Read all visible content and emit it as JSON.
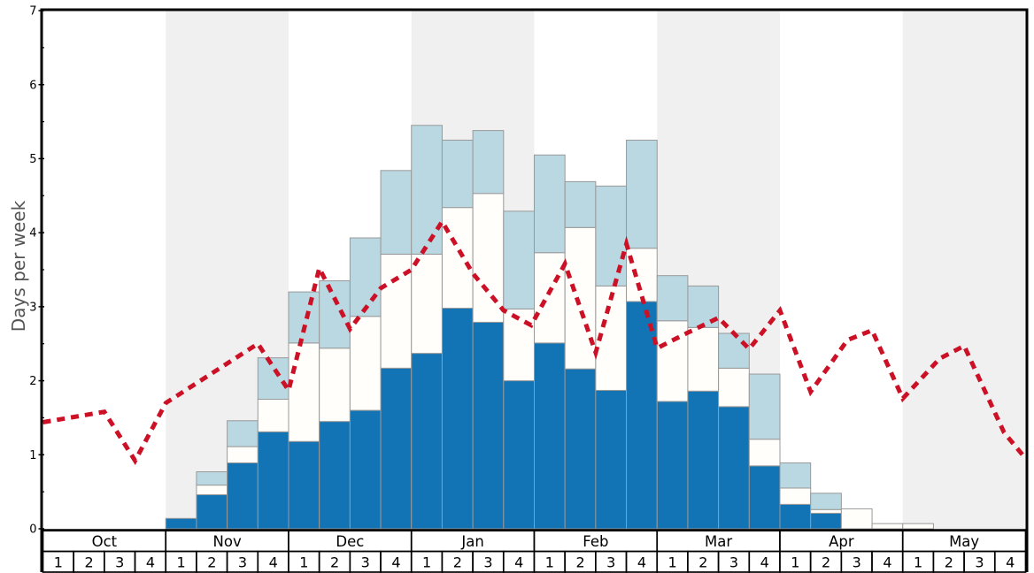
{
  "chart_data": {
    "type": "bar",
    "subtype": "stacked-weekly-bars-with-dashed-line-overlay",
    "title": "",
    "ylabel": "Days per week",
    "ylim": [
      0,
      7
    ],
    "y_major_ticks": [
      0,
      1,
      2,
      3,
      4,
      5,
      6,
      7
    ],
    "y_minor_tick_step": 0.5,
    "x_structure": "8 months x 4 weeks, alternating months shaded",
    "months": [
      {
        "label": "Oct",
        "shaded": false
      },
      {
        "label": "Nov",
        "shaded": true
      },
      {
        "label": "Dec",
        "shaded": false
      },
      {
        "label": "Jan",
        "shaded": true
      },
      {
        "label": "Feb",
        "shaded": false
      },
      {
        "label": "Mar",
        "shaded": true
      },
      {
        "label": "Apr",
        "shaded": false
      },
      {
        "label": "May",
        "shaded": true
      }
    ],
    "week_labels": [
      "1",
      "2",
      "3",
      "4"
    ],
    "series": [
      {
        "name": "dark-blue-bottom",
        "role": "stack-bottom",
        "color": "#1274b5",
        "cumulative_top": [
          0,
          0,
          0,
          0,
          0.14,
          0.46,
          0.89,
          1.31,
          1.18,
          1.45,
          1.6,
          2.17,
          2.37,
          2.98,
          2.79,
          2.0,
          2.51,
          2.16,
          1.87,
          3.07,
          1.72,
          1.86,
          1.65,
          0.85,
          0.33,
          0.21,
          0,
          0,
          0,
          0,
          0,
          0
        ]
      },
      {
        "name": "white-middle",
        "role": "stack-middle",
        "color": "#fffefa",
        "cumulative_top": [
          0,
          0,
          0,
          0,
          0.14,
          0.59,
          1.11,
          1.75,
          2.51,
          2.44,
          2.87,
          3.71,
          3.71,
          4.34,
          4.53,
          2.97,
          3.73,
          4.07,
          3.28,
          3.79,
          2.81,
          2.72,
          2.17,
          1.21,
          0.55,
          0.26,
          0.27,
          0.07,
          0.07,
          0,
          0,
          0
        ]
      },
      {
        "name": "light-blue-top",
        "role": "stack-top",
        "color": "#b9d8e2",
        "cumulative_top": [
          0,
          0,
          0,
          0,
          0.14,
          0.77,
          1.46,
          2.31,
          3.2,
          3.35,
          3.93,
          4.84,
          5.45,
          5.25,
          5.38,
          4.29,
          5.05,
          4.69,
          4.63,
          5.25,
          3.42,
          3.28,
          2.64,
          2.09,
          0.89,
          0.48,
          0.27,
          0.07,
          0.07,
          0,
          0,
          0
        ]
      }
    ],
    "line": {
      "name": "red-dashed-line",
      "color": "#cc1126",
      "dash": [
        9,
        7
      ],
      "width": 5,
      "x_unit": "week boundary index 0-32 from start of Oct",
      "points_week_value": [
        [
          0,
          1.44
        ],
        [
          2,
          1.58
        ],
        [
          3,
          0.92
        ],
        [
          4,
          1.7
        ],
        [
          7,
          2.5
        ],
        [
          8,
          1.87
        ],
        [
          9,
          3.52
        ],
        [
          10,
          2.7
        ],
        [
          11,
          3.25
        ],
        [
          12,
          3.5
        ],
        [
          13,
          4.15
        ],
        [
          14,
          3.45
        ],
        [
          15,
          2.95
        ],
        [
          15.9,
          2.75
        ],
        [
          17,
          3.58
        ],
        [
          18,
          2.38
        ],
        [
          19,
          3.85
        ],
        [
          20,
          2.44
        ],
        [
          21,
          2.65
        ],
        [
          22,
          2.85
        ],
        [
          23,
          2.43
        ],
        [
          24,
          2.95
        ],
        [
          25,
          1.85
        ],
        [
          26.2,
          2.55
        ],
        [
          27,
          2.68
        ],
        [
          28,
          1.76
        ],
        [
          29.2,
          2.3
        ],
        [
          30,
          2.47
        ],
        [
          31.3,
          1.3
        ],
        [
          32,
          0.95
        ]
      ]
    },
    "colors": {
      "background": "#ffffff",
      "shaded_band": "#f0f0f0",
      "bar_border": "#999999",
      "axis": "#000000",
      "table_cell_bg": "#ffffff",
      "table_border": "#000000",
      "ylabel_text": "#555555",
      "tick_label_text": "#000000"
    }
  }
}
